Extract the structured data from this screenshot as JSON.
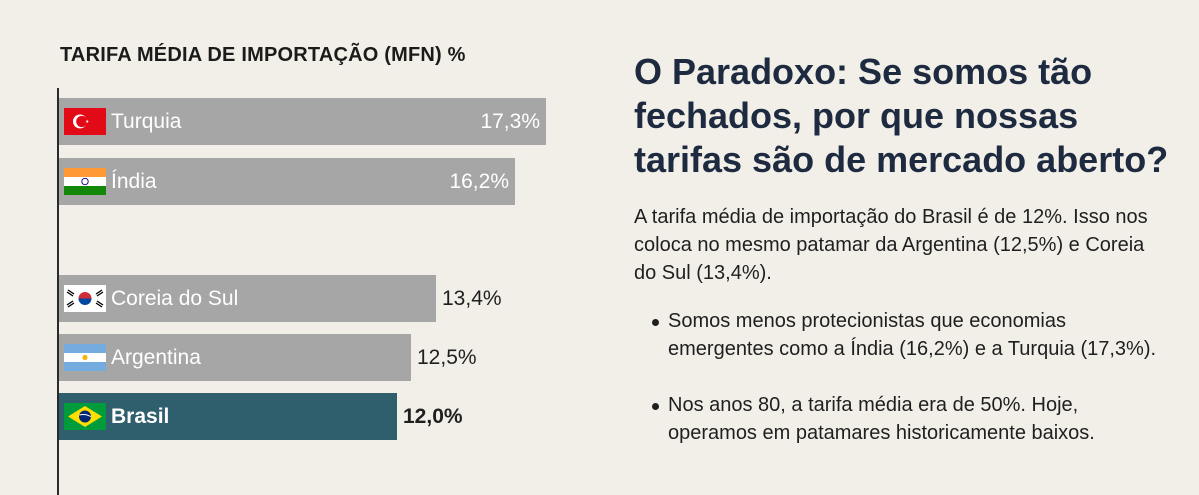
{
  "chart_data": {
    "type": "bar",
    "orientation": "horizontal",
    "title": "TARIFA MÉDIA DE IMPORTAÇÃO (MFN) %",
    "categories": [
      "Turquia",
      "Índia",
      "Coreia do Sul",
      "Argentina",
      "Brasil"
    ],
    "values": [
      17.3,
      16.2,
      13.4,
      12.5,
      12.0
    ],
    "value_labels": [
      "17,3%",
      "16,2%",
      "13,4%",
      "12,5%",
      "12,0%"
    ],
    "highlight": "Brasil",
    "colors": {
      "bar": "#a6a6a6",
      "highlight": "#2f5f6d"
    },
    "flags": [
      "turkey-flag-icon",
      "india-flag-icon",
      "south-korea-flag-icon",
      "argentina-flag-icon",
      "brazil-flag-icon"
    ]
  },
  "panel": {
    "heading": "O Paradoxo: Se somos tão fechados, por que nossas tarifas são de mercado aberto?",
    "paragraph": "A tarifa média de importação do Brasil é de 12%. Isso nos coloca no mesmo patamar da Argentina (12,5%) e Coreia do Sul (13,4%).",
    "bullets": [
      "Somos menos protecionistas que economias emergentes como a Índia (16,2%) e a Turquia (17,3%).",
      "Nos anos 80, a tarifa média era de 50%. Hoje, operamos em patamares historicamente baixos."
    ]
  }
}
